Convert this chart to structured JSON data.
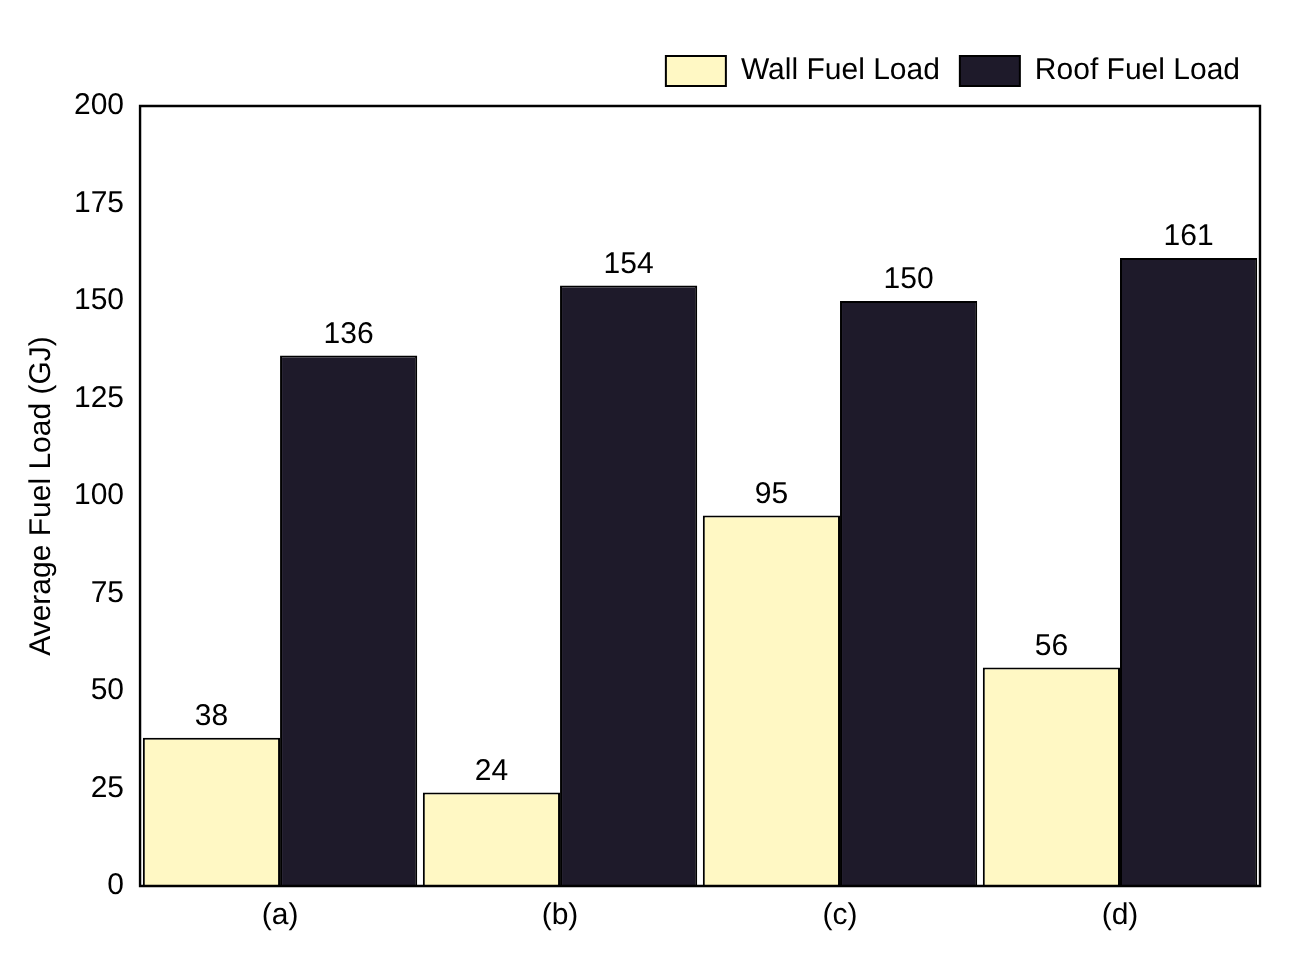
{
  "chart_data": {
    "type": "bar",
    "ylabel": "Average Fuel Load (GJ)",
    "categories": [
      "(a)",
      "(b)",
      "(c)",
      "(d)"
    ],
    "series": [
      {
        "name": "Wall Fuel Load",
        "color": "#fff8c4",
        "values": [
          38,
          24,
          95,
          56
        ]
      },
      {
        "name": "Roof Fuel Load",
        "color": "#1e1a2a",
        "values": [
          136,
          154,
          150,
          161
        ]
      }
    ],
    "ylim": [
      0,
      200
    ],
    "yticks": [
      0,
      25,
      50,
      75,
      100,
      125,
      150,
      175,
      200
    ],
    "data_labels": true,
    "legend": "top right",
    "grid": false
  }
}
